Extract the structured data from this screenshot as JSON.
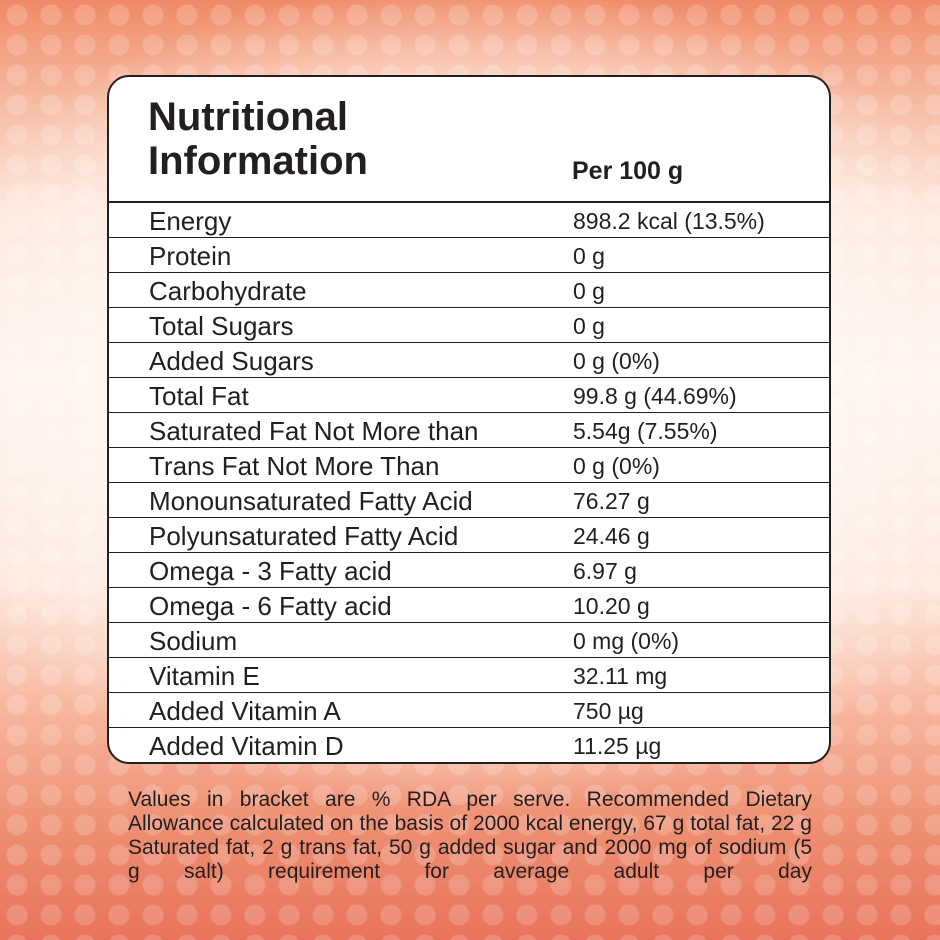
{
  "panel": {
    "title_line1": "Nutritional",
    "title_line2": "Information",
    "per_label": "Per 100 g"
  },
  "rows": [
    {
      "nutrient": "Energy",
      "amount": "898.2 kcal (13.5%)"
    },
    {
      "nutrient": "Protein",
      "amount": "0 g"
    },
    {
      "nutrient": "Carbohydrate",
      "amount": "0 g"
    },
    {
      "nutrient": "Total Sugars",
      "amount": "0 g"
    },
    {
      "nutrient": "Added Sugars",
      "amount": "0 g (0%)"
    },
    {
      "nutrient": "Total Fat",
      "amount": "99.8 g (44.69%)"
    },
    {
      "nutrient": "Saturated Fat Not More than",
      "amount": "5.54g (7.55%)"
    },
    {
      "nutrient": "Trans Fat Not More Than",
      "amount": "0 g (0%)"
    },
    {
      "nutrient": "Monounsaturated Fatty Acid",
      "amount": "76.27 g"
    },
    {
      "nutrient": "Polyunsaturated Fatty Acid",
      "amount": "24.46 g"
    },
    {
      "nutrient": "Omega - 3 Fatty acid",
      "amount": "6.97 g"
    },
    {
      "nutrient": "Omega - 6 Fatty acid",
      "amount": "10.20 g"
    },
    {
      "nutrient": "Sodium",
      "amount": "0 mg (0%)"
    },
    {
      "nutrient": "Vitamin E",
      "amount": "32.11 mg"
    },
    {
      "nutrient": "Added Vitamin A",
      "amount": "750 µg"
    },
    {
      "nutrient": "Added Vitamin D",
      "amount": "11.25 µg"
    }
  ],
  "footnote": "Values in bracket are % RDA per serve. Recommended Dietary Allowance calculated on the basis of 2000 kcal energy, 67 g total fat, 22 g Saturated fat, 2 g trans fat, 50 g added sugar and 2000 mg of sodium (5 g salt) requirement for average adult per day",
  "colors": {
    "text": "#231f20",
    "panel_bg": "#ffffff",
    "background_accent": "#ee8f72"
  }
}
